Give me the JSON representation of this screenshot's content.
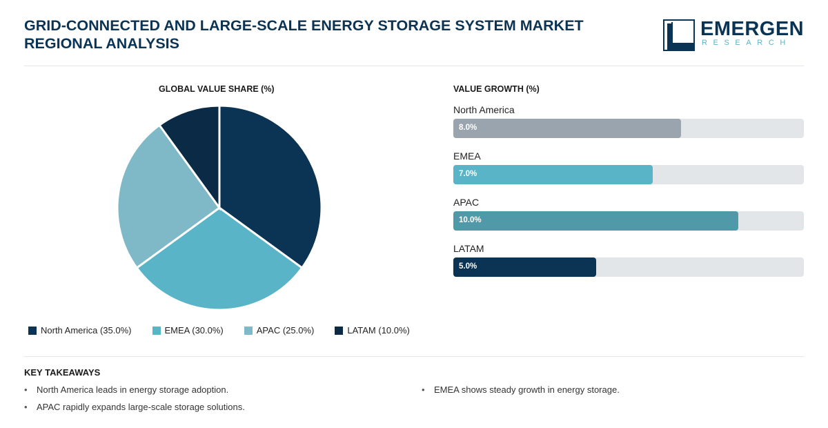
{
  "header": {
    "title": "GRID-CONNECTED AND LARGE-SCALE ENERGY STORAGE SYSTEM MARKET REGIONAL ANALYSIS",
    "logo_word": "EMERGEN",
    "logo_sub": "RESEARCH"
  },
  "chart_data": [
    {
      "type": "pie",
      "title": "GLOBAL VALUE SHARE (%)",
      "categories": [
        "North America",
        "EMEA",
        "APAC",
        "LATAM"
      ],
      "values": [
        35.0,
        30.0,
        25.0,
        10.0
      ],
      "colors": [
        "#0b3354",
        "#58b4c6",
        "#7fb8c6",
        "#0a2a46"
      ],
      "legend": [
        "North America (35.0%)",
        "EMEA (30.0%)",
        "APAC (25.0%)",
        "LATAM (10.0%)"
      ],
      "legend_position": "bottom"
    },
    {
      "type": "bar",
      "orientation": "horizontal",
      "title": "VALUE GROWTH (%)",
      "categories": [
        "North America",
        "EMEA",
        "APAC",
        "LATAM"
      ],
      "values": [
        8.0,
        7.0,
        10.0,
        5.0
      ],
      "value_labels": [
        "8.0%",
        "7.0%",
        "10.0%",
        "5.0%"
      ],
      "colors": [
        "#9aa4ae",
        "#58b4c6",
        "#4f99a8",
        "#0b3354"
      ],
      "xlim": [
        0,
        12.3
      ]
    }
  ],
  "takeaways": {
    "title": "KEY TAKEAWAYS",
    "left": [
      "North America leads in energy storage adoption.",
      "APAC rapidly expands large-scale storage solutions."
    ],
    "right": [
      "EMEA shows steady growth in energy storage."
    ]
  }
}
